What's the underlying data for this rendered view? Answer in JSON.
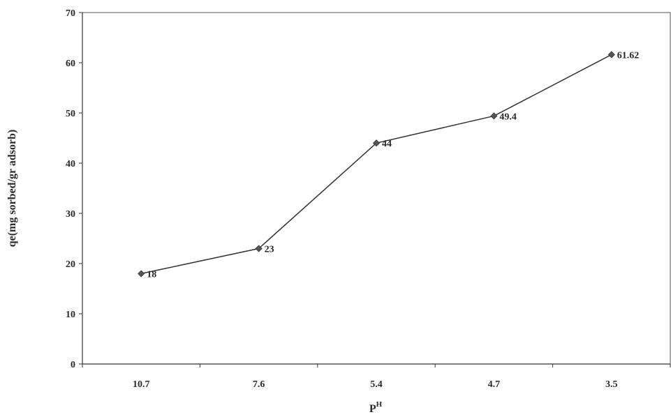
{
  "chart_data": {
    "type": "line",
    "categories": [
      "10.7",
      "7.6",
      "5.4",
      "4.7",
      "3.5"
    ],
    "series": [
      {
        "values": [
          18,
          23,
          44,
          49.4,
          61.62
        ],
        "data_labels": [
          "18",
          "23",
          "44",
          "49.4",
          "61.62"
        ],
        "color": "#333333",
        "marker": "diamond"
      }
    ],
    "title": "",
    "xlabel": "P",
    "xlabel_superscript": "H",
    "ylabel": "qe(mg sorbed/gr adsorb)",
    "ylim": [
      0,
      70
    ],
    "yticks": [
      "0",
      "10",
      "20",
      "30",
      "40",
      "50",
      "60",
      "70"
    ],
    "grid": false,
    "legend": "none"
  }
}
